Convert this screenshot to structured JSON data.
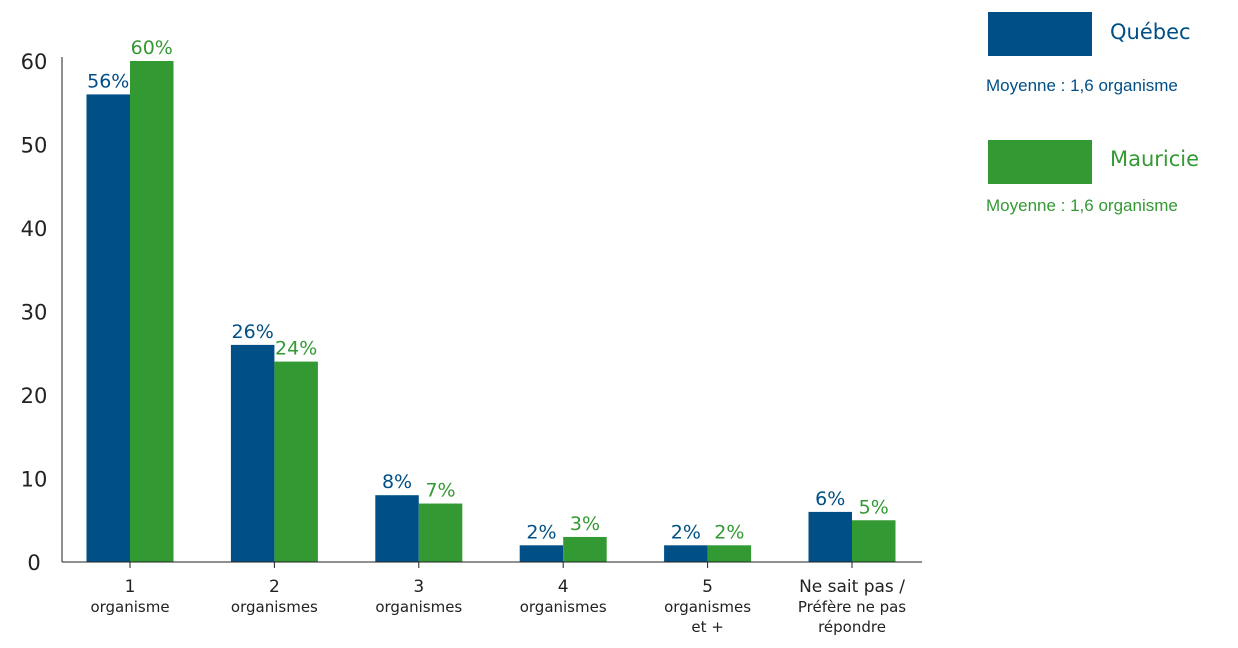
{
  "chart_data": {
    "type": "bar",
    "categories": [
      [
        "1",
        "organisme"
      ],
      [
        "2",
        "organismes"
      ],
      [
        "3",
        "organismes"
      ],
      [
        "4",
        "organismes"
      ],
      [
        "5",
        "organismes",
        "et +"
      ],
      [
        "Ne sait pas /",
        "Préfère ne pas",
        "répondre"
      ]
    ],
    "series": [
      {
        "name": "Québec",
        "color": "#004f86",
        "values": [
          56,
          26,
          8,
          2,
          2,
          6
        ],
        "labels": [
          "56%",
          "26%",
          "8%",
          "2%",
          "2%",
          "6%"
        ]
      },
      {
        "name": "Mauricie",
        "color": "#339933",
        "values": [
          60,
          24,
          7,
          3,
          2,
          5
        ],
        "labels": [
          "60%",
          "24%",
          "7%",
          "3%",
          "2%",
          "5%"
        ]
      }
    ],
    "yticks": [
      "0",
      "10",
      "20",
      "30",
      "40",
      "50",
      "60"
    ],
    "ylim": [
      0,
      60
    ],
    "grid": false,
    "legend_position": "top-right"
  },
  "legend": [
    {
      "name": "Québec",
      "average": "Moyenne : 1,6 organisme",
      "color": "#004f86"
    },
    {
      "name": "Mauricie",
      "average": "Moyenne : 1,6 organisme",
      "color": "#339933"
    }
  ]
}
